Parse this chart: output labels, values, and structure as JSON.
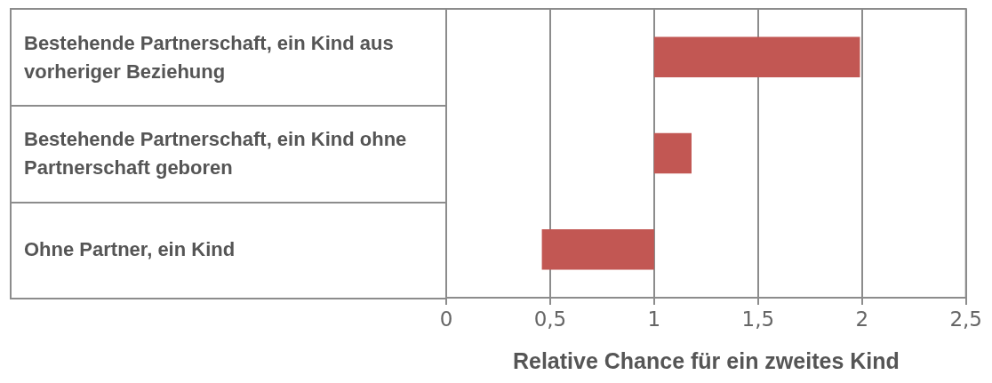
{
  "chart_data": {
    "type": "bar",
    "orientation": "horizontal",
    "xlabel": "Relative Chance für ein zweites Kind",
    "categories": [
      "Bestehende Partnerschaft, ein Kind aus vorheriger Beziehung",
      "Bestehende Partnerschaft, ein Kind ohne Partnerschaft geboren",
      "Ohne Partner, ein Kind"
    ],
    "base": [
      1,
      1,
      1
    ],
    "values": [
      0.99,
      0.18,
      -0.54
    ],
    "color": "#c25753",
    "xlim": [
      0,
      2.5
    ],
    "xticks": [
      0,
      {
        "value": 0.5,
        "label": "0,5"
      },
      1,
      {
        "value": 1.5,
        "label": "1,5"
      },
      2,
      {
        "value": 2.5,
        "label": "2,5"
      }
    ],
    "grid": "x"
  }
}
